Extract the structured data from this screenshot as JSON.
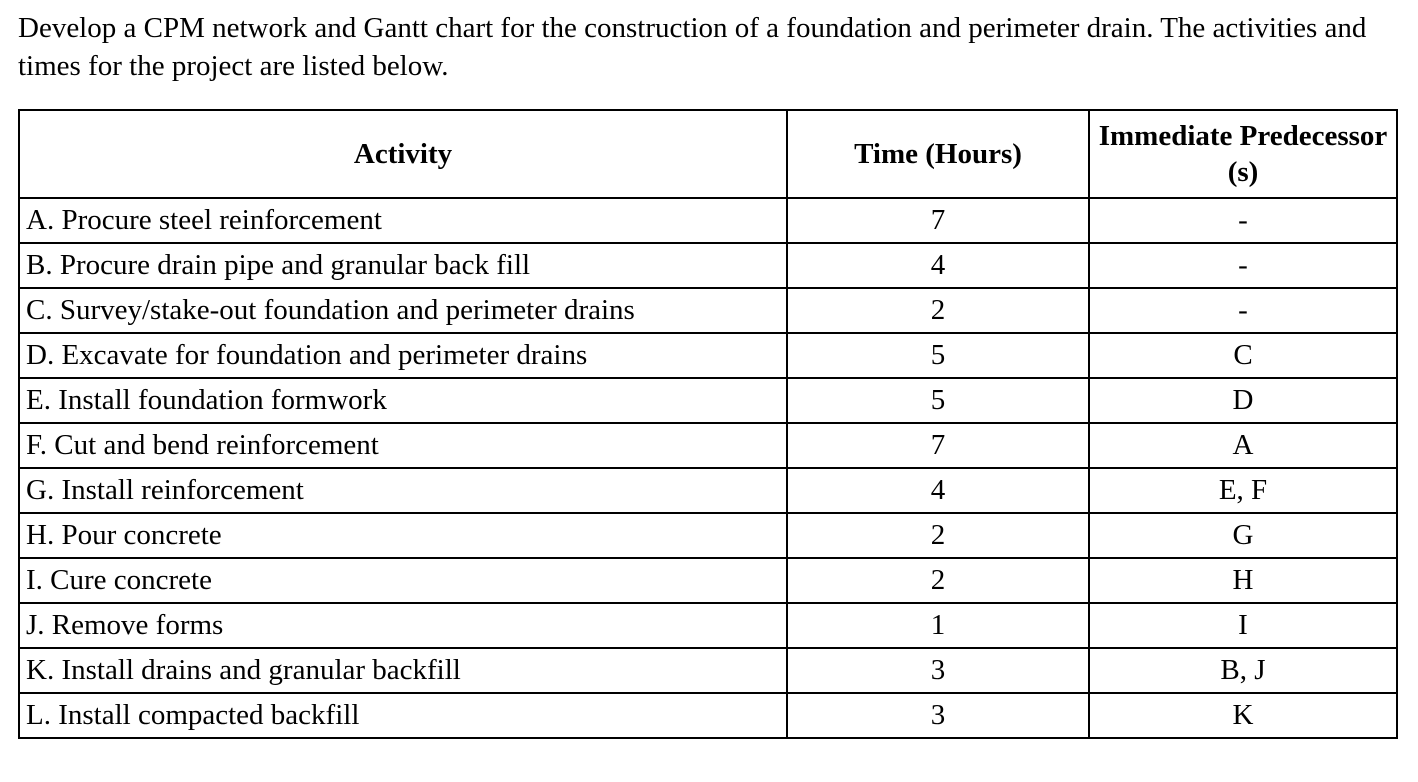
{
  "intro_text": "Develop a CPM network and Gantt chart for the construction of a foundation and perimeter drain. The activities and times for the project are listed below.",
  "table": {
    "headers": [
      "Activity",
      "Time (Hours)",
      "Immediate Predecessor (s)"
    ],
    "rows": [
      {
        "activity": "A. Procure steel reinforcement",
        "time": "7",
        "predecessors": "-"
      },
      {
        "activity": "B. Procure drain pipe and granular back fill",
        "time": "4",
        "predecessors": "-"
      },
      {
        "activity": "C. Survey/stake-out foundation and perimeter drains",
        "time": "2",
        "predecessors": "-"
      },
      {
        "activity": "D. Excavate for foundation and perimeter drains",
        "time": "5",
        "predecessors": "C"
      },
      {
        "activity": "E. Install foundation formwork",
        "time": "5",
        "predecessors": "D"
      },
      {
        "activity": "F. Cut and bend reinforcement",
        "time": "7",
        "predecessors": "A"
      },
      {
        "activity": "G. Install reinforcement",
        "time": "4",
        "predecessors": "E, F"
      },
      {
        "activity": "H. Pour concrete",
        "time": "2",
        "predecessors": "G"
      },
      {
        "activity": "I. Cure concrete",
        "time": "2",
        "predecessors": "H"
      },
      {
        "activity": "J. Remove forms",
        "time": "1",
        "predecessors": "I"
      },
      {
        "activity": "K. Install drains and granular backfill",
        "time": "3",
        "predecessors": "B, J"
      },
      {
        "activity": "L. Install compacted backfill",
        "time": "3",
        "predecessors": "K"
      }
    ]
  }
}
